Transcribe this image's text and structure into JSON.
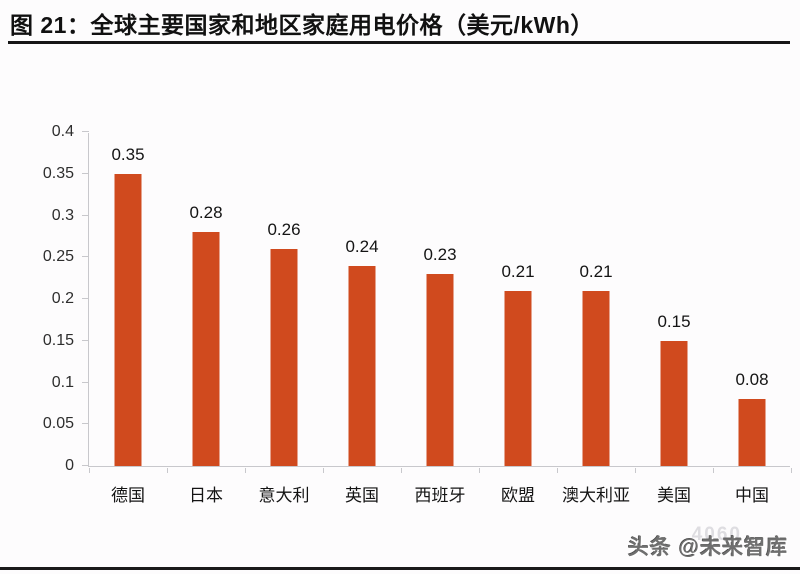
{
  "header": {
    "title": "图 21：全球主要国家和地区家庭用电价格（美元/kWh）"
  },
  "footer": {
    "watermark": "头条 @未来智库",
    "watermark_ghost": "4060"
  },
  "colors": {
    "bar": "#d04a1e",
    "axis": "#c8c8cc",
    "title_text": "#111111",
    "label_text": "#141414",
    "rule": "#1a1a1a"
  },
  "chart_data": {
    "type": "bar",
    "title": "全球主要国家和地区家庭用电价格（美元/kWh）",
    "categories": [
      "德国",
      "日本",
      "意大利",
      "英国",
      "西班牙",
      "欧盟",
      "澳大利亚",
      "美国",
      "中国"
    ],
    "values": [
      0.35,
      0.28,
      0.26,
      0.24,
      0.23,
      0.21,
      0.21,
      0.15,
      0.08
    ],
    "value_labels": [
      "0.35",
      "0.28",
      "0.26",
      "0.24",
      "0.23",
      "0.21",
      "0.21",
      "0.15",
      "0.08"
    ],
    "xlabel": "",
    "ylabel": "",
    "ylim": [
      0,
      0.4
    ],
    "ytick_step": 0.05,
    "ytick_labels": [
      "0",
      "0.05",
      "0.1",
      "0.15",
      "0.2",
      "0.25",
      "0.3",
      "0.35",
      "0.4"
    ],
    "grid": false,
    "legend": "none",
    "bar_orientation": "vertical"
  }
}
